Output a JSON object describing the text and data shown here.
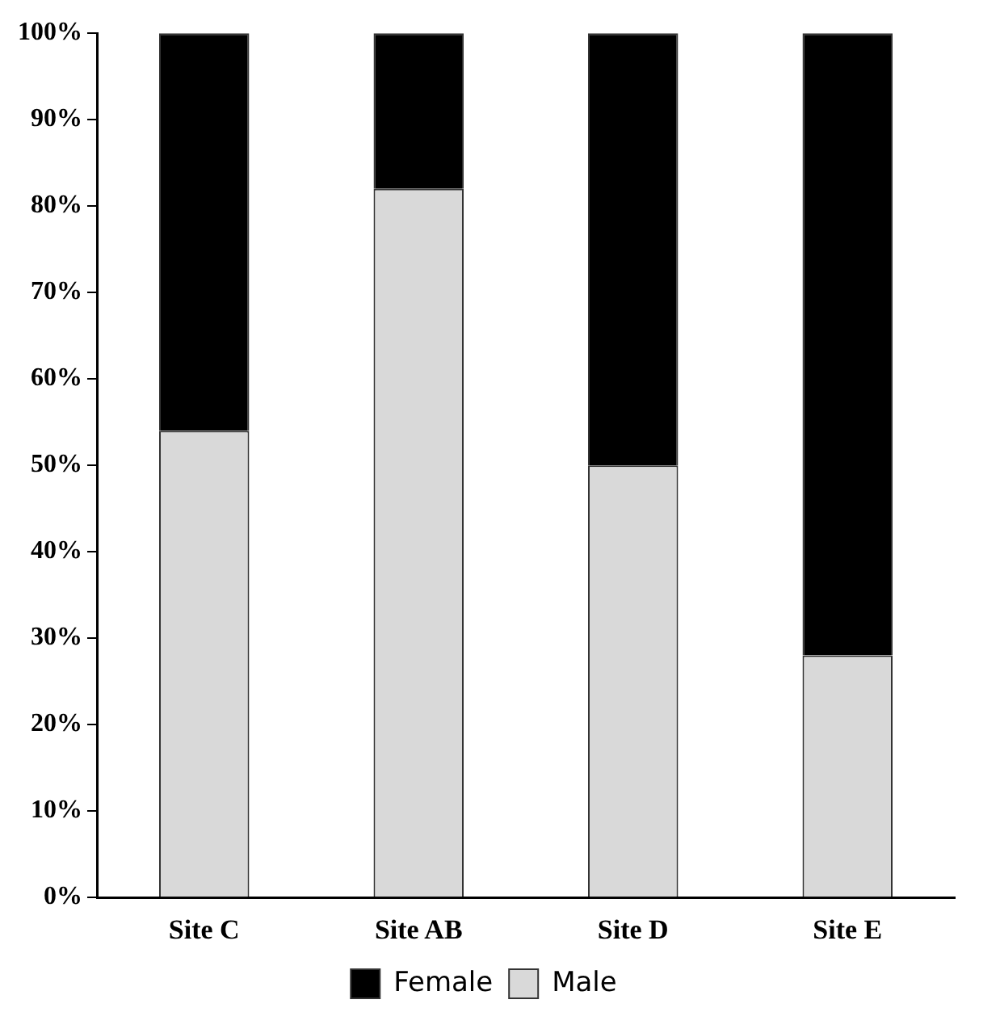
{
  "chart_data": {
    "type": "bar",
    "stacked": true,
    "categories": [
      "Site C",
      "Site AB",
      "Site D",
      "Site E"
    ],
    "series": [
      {
        "name": "Male",
        "color": "#d9d9d9",
        "values": [
          54,
          82,
          50,
          28
        ]
      },
      {
        "name": "Female",
        "color": "#000000",
        "values": [
          46,
          18,
          50,
          72
        ]
      }
    ],
    "ylim": [
      0,
      100
    ],
    "yticks": [
      {
        "value": 0,
        "label": "0%"
      },
      {
        "value": 10,
        "label": "10%"
      },
      {
        "value": 20,
        "label": "20%"
      },
      {
        "value": 30,
        "label": "30%"
      },
      {
        "value": 40,
        "label": "40%"
      },
      {
        "value": 50,
        "label": "50%"
      },
      {
        "value": 60,
        "label": "60%"
      },
      {
        "value": 70,
        "label": "70%"
      },
      {
        "value": 80,
        "label": "80%"
      },
      {
        "value": 90,
        "label": "90%"
      },
      {
        "value": 100,
        "label": "100%"
      }
    ],
    "grid": false,
    "legend": "bottom"
  }
}
